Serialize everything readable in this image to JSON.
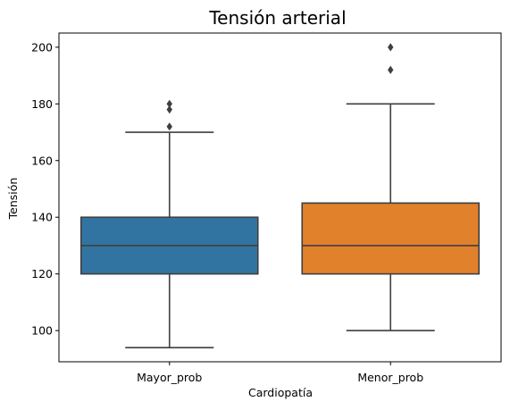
{
  "chart_data": {
    "type": "box",
    "title": "Tensión arterial",
    "xlabel": "Cardiopatía",
    "ylabel": "Tensión",
    "ylim": [
      89,
      205
    ],
    "yticks": [
      100,
      120,
      140,
      160,
      180,
      200
    ],
    "grid": false,
    "legend": "none",
    "categories": [
      "Mayor_prob",
      "Menor_prob"
    ],
    "boxes": [
      {
        "category": "Mayor_prob",
        "whisker_low": 94,
        "q1": 120,
        "median": 130,
        "q3": 140,
        "whisker_high": 170,
        "outliers": [
          172,
          178,
          180
        ],
        "color": "#3274a1"
      },
      {
        "category": "Menor_prob",
        "whisker_low": 100,
        "q1": 120,
        "median": 130,
        "q3": 145,
        "whisker_high": 180,
        "outliers": [
          192,
          200
        ],
        "color": "#e1812c"
      }
    ]
  }
}
